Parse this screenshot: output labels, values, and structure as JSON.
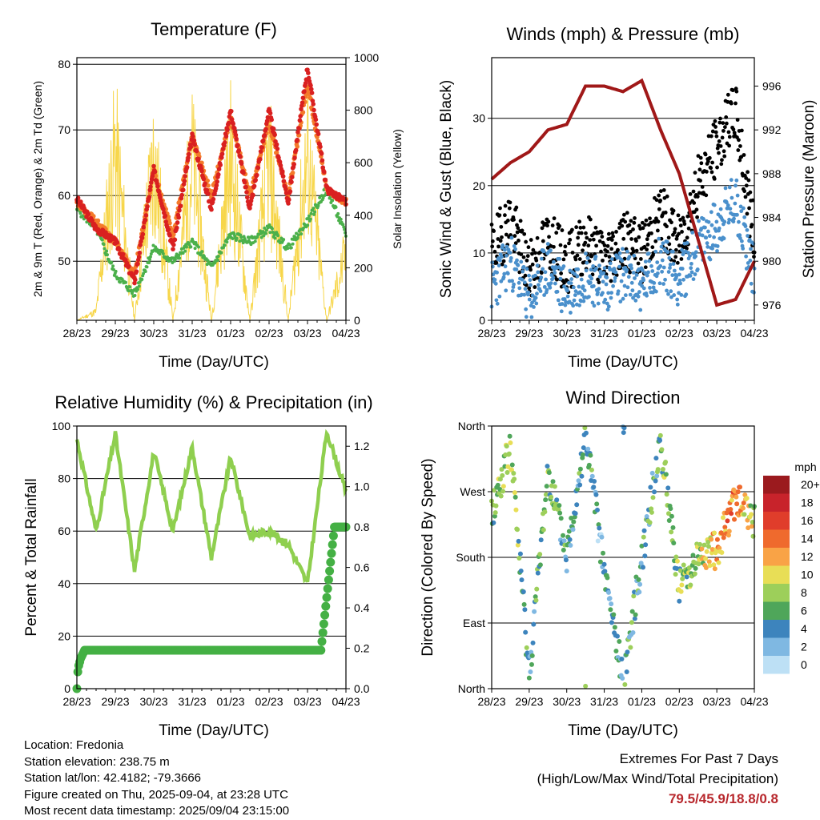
{
  "x_ticks": [
    "28/23",
    "29/23",
    "30/23",
    "31/23",
    "01/23",
    "02/23",
    "03/23",
    "04/23"
  ],
  "colors": {
    "temp_2m": "#d92020",
    "temp_9m": "#f47a2a",
    "dew": "#4bb04b",
    "solar": "#f7d64a",
    "wind": "#4a90cc",
    "gust": "#000000",
    "pressure": "#a01818",
    "rh": "#8fcf4f",
    "precip": "#44b044"
  },
  "info": {
    "location": "Location: Fredonia",
    "elevation": "Station elevation: 238.75 m",
    "latlon": "Station lat/lon: 42.4182; -79.3666",
    "created": "Figure created on Thu, 2025-09-04, at 23:28 UTC",
    "recent": "Most recent data timestamp: 2025/09/04 23:15:00"
  },
  "extremes": {
    "title": "Extremes For Past 7 Days",
    "subtitle": "(High/Low/Max Wind/Total Precipitation)",
    "values": "79.5/45.9/18.8/0.8"
  },
  "chart_data": [
    {
      "type": "line",
      "title": "Temperature (F)",
      "xlabel": "Time (Day/UTC)",
      "ylabel": "2m & 9m T (Red, Orange) & 2m Td (Green)",
      "ylabel_right": "Solar Insolation (Yellow)",
      "ylim": [
        41,
        81
      ],
      "ylim_right": [
        0,
        1000
      ],
      "y_ticks": [
        50,
        60,
        70,
        80
      ],
      "y_ticks_right": [
        0,
        200,
        400,
        600,
        800,
        1000
      ],
      "x_days": [
        0,
        0.5,
        1,
        1.5,
        2,
        2.5,
        3,
        3.5,
        4,
        4.5,
        5,
        5.5,
        6,
        6.5,
        7
      ],
      "series": [
        {
          "name": "2m T",
          "values": [
            59.5,
            55,
            53,
            47,
            64,
            52,
            69,
            58,
            73,
            58,
            73,
            59,
            79.5,
            61,
            59
          ]
        },
        {
          "name": "9m T",
          "values": [
            59,
            56,
            53,
            48,
            64,
            54,
            69,
            60,
            72,
            60,
            71,
            60,
            77,
            61,
            59
          ]
        },
        {
          "name": "2m Td",
          "values": [
            58,
            55,
            48,
            45,
            52,
            50,
            53,
            49,
            54,
            53,
            55,
            52,
            56,
            61,
            54
          ]
        },
        {
          "name": "Solar",
          "values": [
            0,
            50,
            985,
            0,
            950,
            0,
            930,
            0,
            940,
            0,
            920,
            0,
            950,
            0,
            380
          ]
        }
      ]
    },
    {
      "type": "scatter",
      "title": "Winds (mph) & Pressure (mb)",
      "xlabel": "Time (Day/UTC)",
      "ylabel": "Sonic Wind & Gust (Blue, Black)",
      "ylabel_right": "Station Pressure (Maroon)",
      "ylim": [
        0,
        39
      ],
      "ylim_right": [
        974.6,
        998.6
      ],
      "y_ticks": [
        0,
        10,
        20,
        30
      ],
      "y_ticks_right": [
        976,
        980,
        984,
        988,
        992,
        996
      ],
      "x_days": [
        0,
        0.5,
        1,
        1.5,
        2,
        2.5,
        3,
        3.5,
        4,
        4.5,
        5,
        5.5,
        6,
        6.5,
        7
      ],
      "series": [
        {
          "name": "Gust",
          "values": [
            10,
            15,
            7,
            12,
            8,
            12,
            9,
            12,
            10,
            16,
            11,
            20,
            26,
            31,
            12
          ]
        },
        {
          "name": "Wind",
          "values": [
            5,
            9,
            3,
            8,
            4,
            7,
            5,
            7,
            5,
            9,
            6,
            11,
            14,
            18,
            7
          ]
        },
        {
          "name": "Pressure",
          "values": [
            987.5,
            989,
            990,
            992,
            992.5,
            996,
            996,
            995.5,
            996.5,
            992,
            988,
            982,
            976,
            976.5,
            980
          ]
        }
      ]
    },
    {
      "type": "line",
      "title": "Relative Humidity (%) & Precipitation (in)",
      "xlabel": "Time (Day/UTC)",
      "ylabel": "Percent & Total Rainfall",
      "ylim": [
        0,
        100
      ],
      "ylim_right": [
        0,
        1.3
      ],
      "y_ticks": [
        0,
        20,
        40,
        60,
        80,
        100
      ],
      "y_ticks_right": [
        0.0,
        0.2,
        0.4,
        0.6,
        0.8,
        1.0,
        1.2
      ],
      "x_days": [
        0,
        0.5,
        1,
        1.5,
        2,
        2.5,
        3,
        3.5,
        4,
        4.5,
        5,
        5.5,
        6,
        6.5,
        7
      ],
      "series": [
        {
          "name": "RH",
          "values": [
            95,
            60,
            97,
            45,
            90,
            60,
            92,
            50,
            88,
            58,
            60,
            55,
            40,
            98,
            75
          ]
        },
        {
          "name": "Precipitation",
          "values": [
            0,
            0.19,
            0.19,
            0.19,
            0.19,
            0.19,
            0.19,
            0.19,
            0.19,
            0.19,
            0.19,
            0.19,
            0.19,
            0.8,
            0.8
          ]
        }
      ]
    },
    {
      "type": "scatter",
      "title": "Wind Direction",
      "xlabel": "Time (Day/UTC)",
      "ylabel": "Direction (Colored By Speed)",
      "y_tick_labels": [
        "North",
        "East",
        "South",
        "West",
        "North"
      ],
      "ylim": [
        0,
        360
      ],
      "colorbar_title": "mph",
      "colorbar_labels": [
        "20+",
        "18",
        "16",
        "14",
        "12",
        "10",
        "8",
        "6",
        "4",
        "2",
        "0"
      ],
      "colorbar_colors": [
        "#9b1a1e",
        "#c8232b",
        "#e03d2b",
        "#ef6a2d",
        "#f9a346",
        "#e8de56",
        "#9dcf5a",
        "#4fa65a",
        "#3d84bd",
        "#7fb8e2",
        "#bde0f5"
      ],
      "x_days": [
        0,
        0.5,
        1,
        1.5,
        2,
        2.5,
        3,
        3.5,
        4,
        4.5,
        5,
        5.5,
        6,
        6.5,
        7
      ],
      "values": [
        240,
        330,
        20,
        300,
        180,
        350,
        160,
        10,
        180,
        340,
        140,
        180,
        190,
        260,
        230
      ],
      "speeds": [
        6,
        9,
        4,
        7,
        4,
        5,
        3,
        4,
        5,
        6,
        7,
        8,
        12,
        14,
        8
      ]
    }
  ]
}
